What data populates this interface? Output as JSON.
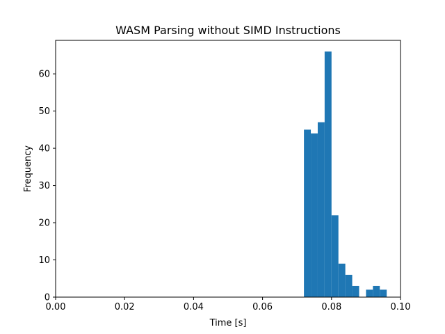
{
  "chart_data": {
    "type": "bar",
    "subtype": "histogram",
    "title": "WASM Parsing without SIMD Instructions",
    "xlabel": "Time [s]",
    "ylabel": "Frequency",
    "xlim": [
      0.0,
      0.1
    ],
    "ylim": [
      0,
      69
    ],
    "grid": false,
    "color": "#1f77b4",
    "x_ticks": [
      "0.00",
      "0.02",
      "0.04",
      "0.06",
      "0.08",
      "0.10"
    ],
    "x_tick_values": [
      0.0,
      0.02,
      0.04,
      0.06,
      0.08,
      0.1
    ],
    "y_ticks": [
      "0",
      "10",
      "20",
      "30",
      "40",
      "50",
      "60"
    ],
    "y_tick_values": [
      0,
      10,
      20,
      30,
      40,
      50,
      60
    ],
    "bins": [
      {
        "x0": 0.072,
        "x1": 0.074,
        "count": 45
      },
      {
        "x0": 0.074,
        "x1": 0.076,
        "count": 44
      },
      {
        "x0": 0.076,
        "x1": 0.078,
        "count": 47
      },
      {
        "x0": 0.078,
        "x1": 0.08,
        "count": 66
      },
      {
        "x0": 0.08,
        "x1": 0.082,
        "count": 22
      },
      {
        "x0": 0.082,
        "x1": 0.084,
        "count": 9
      },
      {
        "x0": 0.084,
        "x1": 0.086,
        "count": 6
      },
      {
        "x0": 0.086,
        "x1": 0.088,
        "count": 3
      },
      {
        "x0": 0.088,
        "x1": 0.09,
        "count": 0
      },
      {
        "x0": 0.09,
        "x1": 0.092,
        "count": 2
      },
      {
        "x0": 0.092,
        "x1": 0.094,
        "count": 3
      },
      {
        "x0": 0.094,
        "x1": 0.096,
        "count": 2
      }
    ]
  }
}
